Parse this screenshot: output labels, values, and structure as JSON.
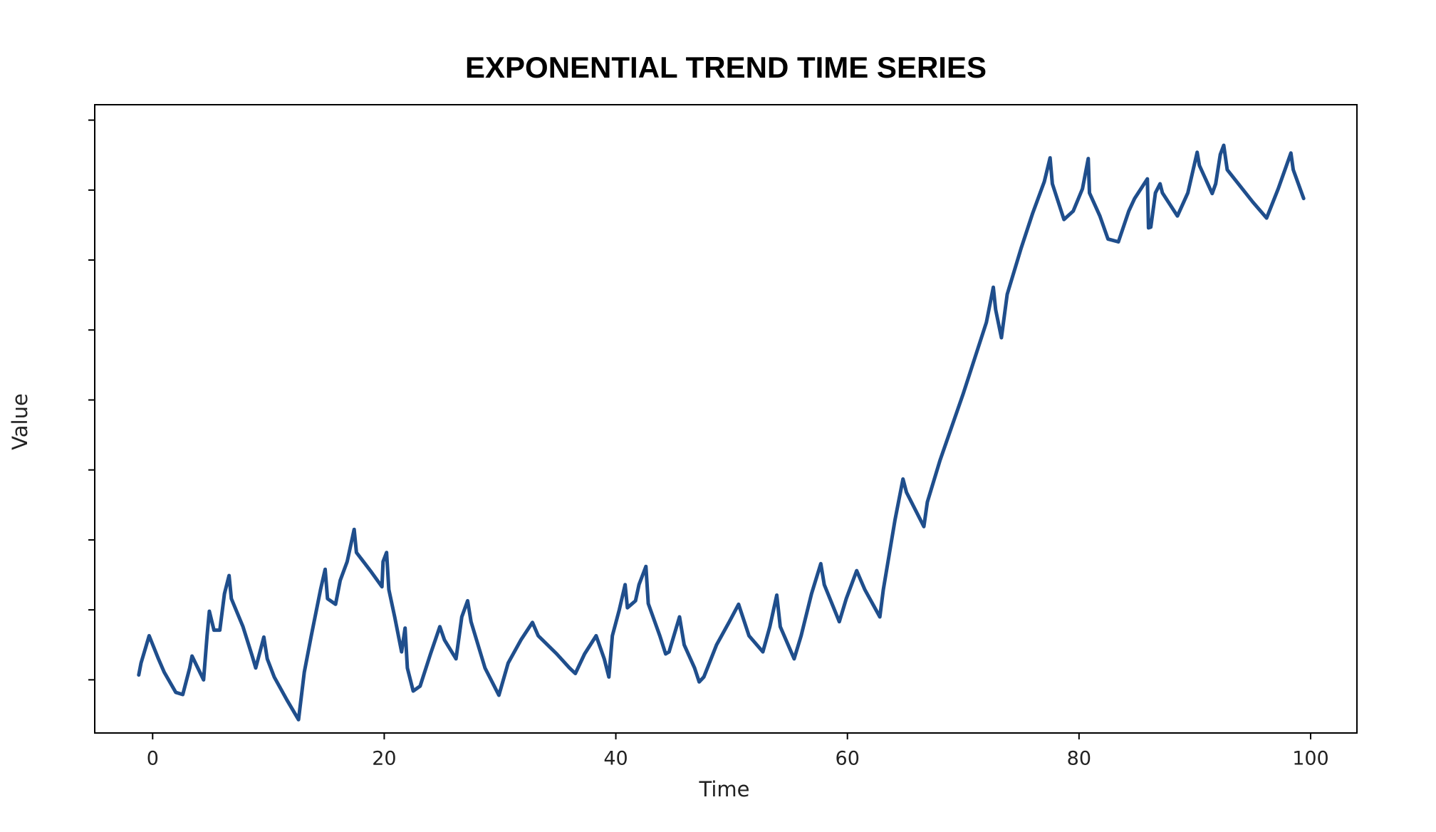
{
  "chart_data": {
    "type": "line",
    "title": "EXPONENTIAL TREND TIME SERIES",
    "x_label": "Time",
    "y_label": "Value",
    "x": [
      -1.2,
      -1,
      -0.3,
      0.5,
      1,
      2,
      2.6,
      3.2,
      3.4,
      4.4,
      4.7,
      4.9,
      5.3,
      5.8,
      6.2,
      6.6,
      6.8,
      7.8,
      8.6,
      8.9,
      9.6,
      9.9,
      10.5,
      11.6,
      12.6,
      13.1,
      13.7,
      14.5,
      14.9,
      15.1,
      15.8,
      16.2,
      16.8,
      17.4,
      17.6,
      18.8,
      19.8,
      19.9,
      20.2,
      20.4,
      20.9,
      21.5,
      21.8,
      22.0,
      22.5,
      23.1,
      24.0,
      24.8,
      25.2,
      26.2,
      26.7,
      27.2,
      27.5,
      28.7,
      29.9,
      30.7,
      31.8,
      32.8,
      33.3,
      34.9,
      36.0,
      36.5,
      37.3,
      38.3,
      39.0,
      39.4,
      39.7,
      40.3,
      40.8,
      41.0,
      41.7,
      42.0,
      42.6,
      42.8,
      43.8,
      44.3,
      44.6,
      45.5,
      45.9,
      46.8,
      47.2,
      47.6,
      48.7,
      49.8,
      50.6,
      51.5,
      52.7,
      53.3,
      53.9,
      54.2,
      55.4,
      56.0,
      56.9,
      57.7,
      58.0,
      59.3,
      59.9,
      60.8,
      61.5,
      62.8,
      63.1,
      64.1,
      64.8,
      65.1,
      66.6,
      66.9,
      68.0,
      70.0,
      72.0,
      72.6,
      72.8,
      73.3,
      73.8,
      75.0,
      76.0,
      77.0,
      77.5,
      77.7,
      78.7,
      79.5,
      80.3,
      80.8,
      80.9,
      81.8,
      82.5,
      83.4,
      84.3,
      84.8,
      85.9,
      86.0,
      86.2,
      86.6,
      87.0,
      87.2,
      88.5,
      89.4,
      90.2,
      90.4,
      91.5,
      91.8,
      92.2,
      92.5,
      92.8,
      95.0,
      96.2,
      97.2,
      98.3,
      98.5,
      99.4
    ],
    "series": [
      {
        "color": "#1f4e8c",
        "values": [
          1.07,
          1.24,
          1.63,
          1.3,
          1.11,
          0.82,
          0.79,
          1.17,
          1.34,
          1.0,
          1.63,
          1.98,
          1.71,
          1.71,
          2.23,
          2.49,
          2.16,
          1.76,
          1.34,
          1.17,
          1.61,
          1.3,
          1.04,
          0.71,
          0.43,
          1.11,
          1.63,
          2.29,
          2.58,
          2.16,
          2.08,
          2.42,
          2.69,
          3.15,
          2.82,
          2.56,
          2.33,
          2.69,
          2.82,
          2.29,
          1.9,
          1.4,
          1.74,
          1.17,
          0.84,
          0.91,
          1.37,
          1.76,
          1.57,
          1.3,
          1.9,
          2.13,
          1.83,
          1.17,
          0.78,
          1.24,
          1.57,
          1.82,
          1.63,
          1.37,
          1.17,
          1.09,
          1.37,
          1.63,
          1.3,
          1.04,
          1.63,
          2.0,
          2.36,
          2.03,
          2.13,
          2.36,
          2.62,
          2.09,
          1.63,
          1.37,
          1.4,
          1.9,
          1.5,
          1.17,
          0.97,
          1.04,
          1.5,
          1.83,
          2.08,
          1.63,
          1.4,
          1.76,
          2.21,
          1.76,
          1.3,
          1.63,
          2.23,
          2.66,
          2.36,
          1.83,
          2.16,
          2.56,
          2.29,
          1.9,
          2.29,
          3.28,
          3.87,
          3.68,
          3.19,
          3.54,
          4.14,
          5.09,
          6.11,
          6.61,
          6.29,
          5.89,
          6.51,
          7.17,
          7.67,
          8.12,
          8.46,
          8.09,
          7.58,
          7.7,
          8.02,
          8.45,
          7.96,
          7.63,
          7.3,
          7.26,
          7.7,
          7.88,
          8.16,
          7.46,
          7.47,
          7.96,
          8.09,
          7.96,
          7.63,
          7.96,
          8.54,
          8.35,
          7.95,
          8.09,
          8.51,
          8.64,
          8.29,
          7.83,
          7.6,
          8.02,
          8.53,
          8.29,
          7.88
        ]
      }
    ],
    "xlim": [
      -5,
      104
    ],
    "xticks": [
      0,
      20,
      40,
      60,
      80,
      100
    ],
    "ylim": [
      0.24,
      9.22
    ],
    "yticks": [
      1,
      2,
      3,
      4,
      5,
      6,
      7,
      8,
      9
    ],
    "ytick_labels": false
  }
}
